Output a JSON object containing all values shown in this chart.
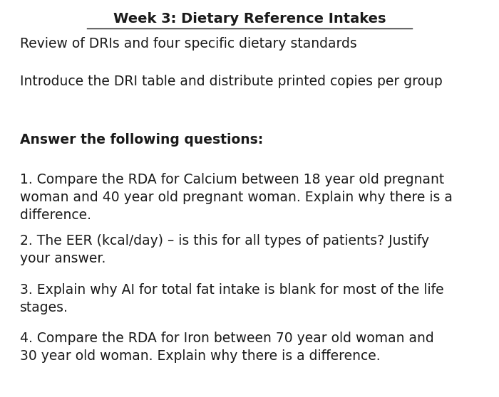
{
  "background_color": "#ffffff",
  "title": "Week 3: Dietary Reference Intakes",
  "title_fontsize": 14,
  "line1": "Review of DRIs and four specific dietary standards",
  "line2": "Introduce the DRI table and distribute printed copies per group",
  "section_header": "Answer the following questions:",
  "q1": "1. Compare the RDA for Calcium between 18 year old pregnant\nwoman and 40 year old pregnant woman. Explain why there is a\ndifference.",
  "q2": "2. The EER (kcal/day) – is this for all types of patients? Justify\nyour answer.",
  "q3": "3. Explain why AI for total fat intake is blank for most of the life\nstages.",
  "q4": "4. Compare the RDA for Iron between 70 year old woman and\n30 year old woman. Explain why there is a difference.",
  "text_color": "#1a1a1a",
  "body_fontsize": 13.5,
  "header_fontsize": 13.5,
  "fig_width": 7.0,
  "fig_height": 5.58
}
